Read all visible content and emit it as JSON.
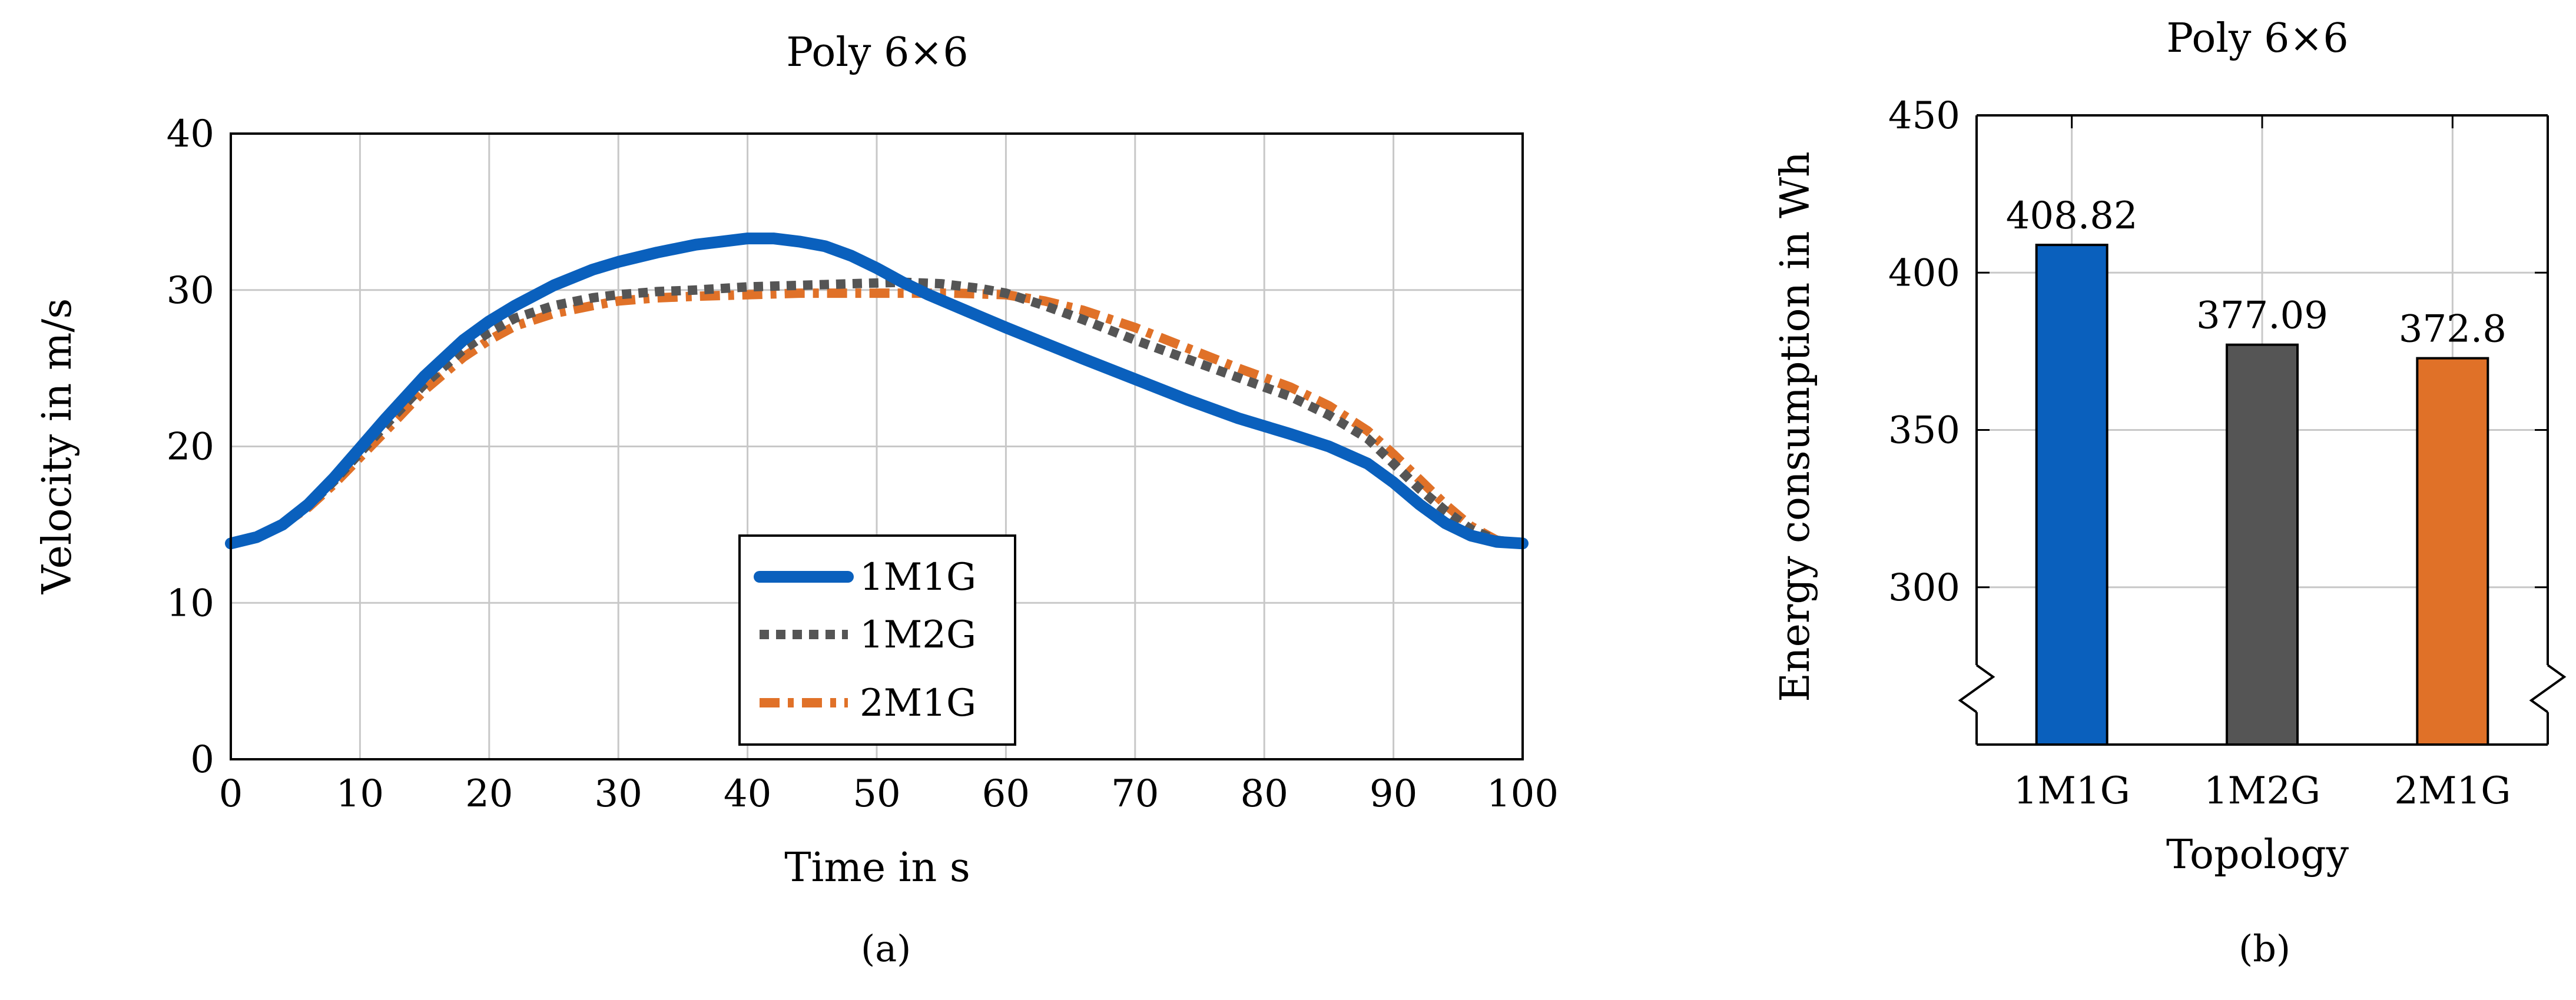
{
  "chart_data": [
    {
      "type": "line",
      "panel_label": "(a)",
      "title": "Poly 6×6",
      "xlabel": "Time in s",
      "ylabel": "Velocity in m/s",
      "xlim": [
        0,
        100
      ],
      "ylim": [
        0,
        40
      ],
      "xticks": [
        0,
        10,
        20,
        30,
        40,
        50,
        60,
        70,
        80,
        90,
        100
      ],
      "yticks": [
        0,
        10,
        20,
        30,
        40
      ],
      "grid": true,
      "legend_position": "bottom-center",
      "series": [
        {
          "name": "1M1G",
          "color": "#0a60bd",
          "style": "solid",
          "x": [
            0,
            2,
            4,
            6,
            8,
            10,
            12,
            15,
            18,
            20,
            22,
            25,
            28,
            30,
            33,
            36,
            38,
            40,
            42,
            44,
            46,
            48,
            50,
            52,
            54,
            56,
            58,
            60,
            63,
            66,
            70,
            74,
            78,
            82,
            85,
            88,
            90,
            92,
            94,
            96,
            98,
            100
          ],
          "y": [
            13.8,
            14.2,
            15.0,
            16.3,
            18.0,
            19.9,
            21.8,
            24.5,
            26.8,
            28.0,
            29.0,
            30.3,
            31.3,
            31.8,
            32.4,
            32.9,
            33.1,
            33.3,
            33.3,
            33.1,
            32.8,
            32.2,
            31.4,
            30.5,
            29.7,
            29.0,
            28.3,
            27.6,
            26.6,
            25.6,
            24.3,
            23.0,
            21.8,
            20.8,
            20.0,
            18.9,
            17.7,
            16.3,
            15.1,
            14.3,
            13.9,
            13.8
          ]
        },
        {
          "name": "1M2G",
          "color": "#555555",
          "style": "dotted",
          "x": [
            0,
            2,
            4,
            6,
            8,
            10,
            12,
            15,
            18,
            20,
            22,
            25,
            28,
            30,
            33,
            36,
            40,
            44,
            48,
            52,
            55,
            58,
            60,
            63,
            66,
            70,
            74,
            78,
            82,
            85,
            88,
            90,
            92,
            94,
            96,
            98,
            100
          ],
          "y": [
            13.8,
            14.2,
            15.0,
            16.2,
            17.8,
            19.6,
            21.4,
            24.0,
            26.2,
            27.3,
            28.2,
            29.0,
            29.5,
            29.7,
            29.9,
            30.0,
            30.2,
            30.3,
            30.4,
            30.5,
            30.4,
            30.1,
            29.8,
            29.0,
            28.1,
            26.8,
            25.6,
            24.4,
            23.2,
            22.0,
            20.5,
            18.9,
            17.3,
            15.9,
            14.7,
            14.0,
            13.8
          ]
        },
        {
          "name": "2M1G",
          "color": "#e07128",
          "style": "dash-dot",
          "x": [
            0,
            2,
            4,
            6,
            8,
            10,
            12,
            15,
            18,
            20,
            22,
            25,
            28,
            30,
            33,
            36,
            40,
            44,
            48,
            52,
            56,
            60,
            63,
            66,
            70,
            74,
            78,
            82,
            85,
            88,
            90,
            92,
            94,
            96,
            98,
            100
          ],
          "y": [
            13.8,
            14.2,
            15.0,
            16.1,
            17.6,
            19.3,
            21.0,
            23.6,
            25.7,
            26.8,
            27.7,
            28.5,
            29.0,
            29.3,
            29.5,
            29.6,
            29.7,
            29.8,
            29.8,
            29.8,
            29.8,
            29.7,
            29.3,
            28.7,
            27.6,
            26.3,
            25.0,
            23.8,
            22.6,
            21.0,
            19.5,
            17.9,
            16.3,
            14.9,
            14.0,
            13.8
          ]
        }
      ]
    },
    {
      "type": "bar",
      "panel_label": "(b)",
      "title": "Poly 6×6",
      "xlabel": "Topology",
      "ylabel": "Energy consumption in Wh",
      "categories": [
        "1M1G",
        "1M2G",
        "2M1G"
      ],
      "values": [
        408.82,
        377.09,
        372.8
      ],
      "value_labels": [
        "408.82",
        "377.09",
        "372.8"
      ],
      "colors": [
        "#0a60bd",
        "#555555",
        "#e07128"
      ],
      "ylim": [
        250,
        450
      ],
      "yticks": [
        300,
        350,
        400,
        450
      ],
      "axis_break": true,
      "grid": true
    }
  ]
}
